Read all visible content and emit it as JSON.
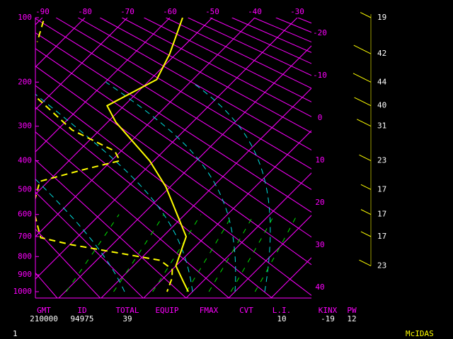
{
  "chart_data": {
    "type": "skewt",
    "ylim": [
      100,
      1000
    ],
    "yticks": [
      100,
      200,
      300,
      400,
      500,
      600,
      700,
      800,
      900,
      1000
    ],
    "isotherms": [
      -90,
      -80,
      -70,
      -60,
      -50,
      -40,
      -30,
      -20,
      -10,
      0,
      10,
      20,
      30,
      40
    ],
    "grid_color": "#ff00ff",
    "series": [
      {
        "color": "#ffff00",
        "style": "solid",
        "pressure": [
          100,
          150,
          195,
          250,
          290,
          400,
          490,
          700,
          850,
          940,
          1000
        ],
        "values": [
          -57,
          -51.5,
          -48.5,
          -54,
          -48,
          -31,
          -21,
          -4.5,
          0,
          5.5,
          9
        ]
      },
      {
        "color": "#ffff00",
        "style": "dashed",
        "pressure": [
          104,
          132,
          170,
          234,
          310,
          370,
          400,
          427,
          470,
          570,
          705,
          740,
          770,
          820,
          870,
          920,
          1000
        ],
        "values": [
          -89,
          -85.5,
          null,
          -72,
          -56.5,
          -41.5,
          -38,
          -44,
          -52,
          -47.5,
          -38.5,
          -29.5,
          -20,
          -5,
          0,
          2,
          4
        ]
      }
    ],
    "wind": {
      "color": "#ffff00",
      "pressure": [
        100,
        150,
        200,
        250,
        300,
        400,
        500,
        600,
        700,
        850
      ],
      "speeds": [
        19,
        42,
        44,
        40,
        31,
        23,
        17,
        17,
        17,
        23
      ]
    }
  },
  "footer": {
    "labels": [
      "GMT",
      "ID",
      "TOTAL",
      "EQUIP",
      "FMAX",
      "CVT",
      "L.I.",
      "KINX",
      "PW"
    ],
    "values": [
      210000,
      94975,
      39,
      null,
      null,
      null,
      10,
      -19,
      12
    ]
  },
  "frame_number": "1",
  "brand": "McIDAS"
}
